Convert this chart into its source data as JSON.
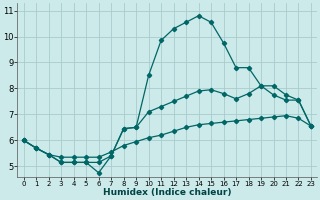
{
  "xlabel": "Humidex (Indice chaleur)",
  "bg_color": "#cceaea",
  "grid_color": "#aacccc",
  "line_color": "#006666",
  "xlim": [
    -0.5,
    23.5
  ],
  "ylim": [
    4.6,
    11.3
  ],
  "xticks": [
    0,
    1,
    2,
    3,
    4,
    5,
    6,
    7,
    8,
    9,
    10,
    11,
    12,
    13,
    14,
    15,
    16,
    17,
    18,
    19,
    20,
    21,
    22,
    23
  ],
  "yticks": [
    5,
    6,
    7,
    8,
    9,
    10,
    11
  ],
  "line1": [
    6.0,
    5.7,
    5.45,
    5.15,
    5.15,
    5.15,
    4.75,
    5.4,
    6.45,
    6.5,
    8.5,
    9.85,
    10.3,
    10.55,
    10.8,
    10.55,
    9.75,
    8.8,
    8.8,
    8.1,
    7.75,
    7.55,
    7.55,
    6.55
  ],
  "line2": [
    6.0,
    5.7,
    5.45,
    5.15,
    5.15,
    5.15,
    5.15,
    5.4,
    6.45,
    6.5,
    7.1,
    7.3,
    7.5,
    7.7,
    7.9,
    7.95,
    7.8,
    7.6,
    7.8,
    8.1,
    8.1,
    7.75,
    7.55,
    6.55
  ],
  "line3": [
    6.0,
    5.7,
    5.45,
    5.35,
    5.35,
    5.35,
    5.35,
    5.55,
    5.8,
    5.95,
    6.1,
    6.2,
    6.35,
    6.5,
    6.6,
    6.65,
    6.7,
    6.75,
    6.8,
    6.85,
    6.9,
    6.95,
    6.85,
    6.55
  ],
  "tick_fontsize_x": 5,
  "tick_fontsize_y": 6,
  "xlabel_fontsize": 6.5,
  "marker_size": 2.2,
  "line_width": 0.9
}
